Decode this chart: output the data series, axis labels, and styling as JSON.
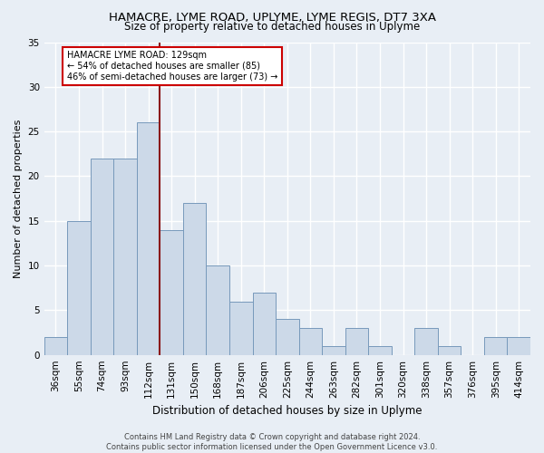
{
  "title1": "HAMACRE, LYME ROAD, UPLYME, LYME REGIS, DT7 3XA",
  "title2": "Size of property relative to detached houses in Uplyme",
  "xlabel": "Distribution of detached houses by size in Uplyme",
  "ylabel": "Number of detached properties",
  "categories": [
    "36sqm",
    "55sqm",
    "74sqm",
    "93sqm",
    "112sqm",
    "131sqm",
    "150sqm",
    "168sqm",
    "187sqm",
    "206sqm",
    "225sqm",
    "244sqm",
    "263sqm",
    "282sqm",
    "301sqm",
    "320sqm",
    "338sqm",
    "357sqm",
    "376sqm",
    "395sqm",
    "414sqm"
  ],
  "values": [
    2,
    15,
    22,
    22,
    26,
    14,
    17,
    10,
    6,
    7,
    4,
    3,
    1,
    3,
    1,
    0,
    3,
    1,
    0,
    2,
    2
  ],
  "bar_color": "#ccd9e8",
  "bar_edge_color": "#7799bb",
  "marker_color": "#8b1a1a",
  "annotation_lines": [
    "HAMACRE LYME ROAD: 129sqm",
    "← 54% of detached houses are smaller (85)",
    "46% of semi-detached houses are larger (73) →"
  ],
  "annotation_box_color": "#ffffff",
  "annotation_box_edge": "#cc0000",
  "ylim": [
    0,
    35
  ],
  "yticks": [
    0,
    5,
    10,
    15,
    20,
    25,
    30,
    35
  ],
  "footer1": "Contains HM Land Registry data © Crown copyright and database right 2024.",
  "footer2": "Contains public sector information licensed under the Open Government Licence v3.0.",
  "bg_color": "#e8eef5",
  "grid_color": "#ffffff",
  "title1_fontsize": 9.5,
  "title2_fontsize": 8.5,
  "xlabel_fontsize": 8.5,
  "ylabel_fontsize": 8.0,
  "tick_fontsize": 7.5,
  "footer_fontsize": 6.0
}
